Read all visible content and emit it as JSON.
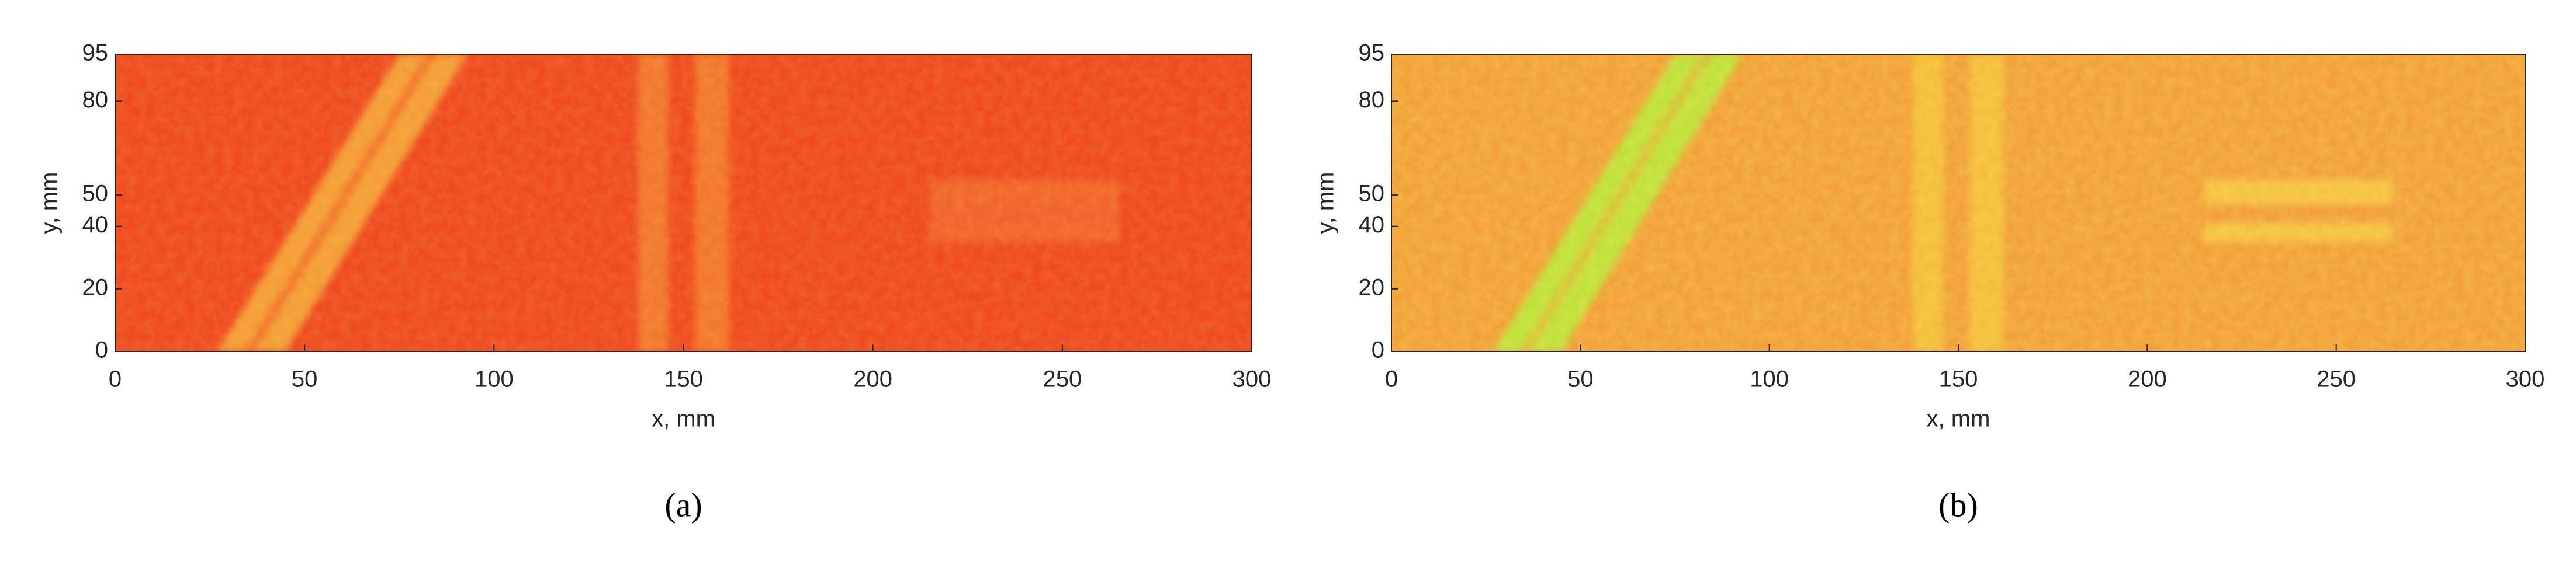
{
  "chart_data": [
    {
      "type": "heatmap",
      "xlabel": "x, mm",
      "ylabel": "y, mm",
      "panel_label": "(a)",
      "xlim": [
        0,
        300
      ],
      "ylim": [
        0,
        95
      ],
      "xticks": [
        0,
        50,
        100,
        150,
        200,
        250,
        300
      ],
      "yticks": [
        0,
        20,
        40,
        50,
        80,
        95
      ]
    },
    {
      "type": "heatmap",
      "xlabel": "x, mm",
      "ylabel": "y, mm",
      "panel_label": "(b)",
      "xlim": [
        0,
        300
      ],
      "ylim": [
        0,
        95
      ],
      "xticks": [
        0,
        50,
        100,
        150,
        200,
        250,
        300
      ],
      "yticks": [
        0,
        20,
        40,
        50,
        80,
        95
      ]
    }
  ]
}
